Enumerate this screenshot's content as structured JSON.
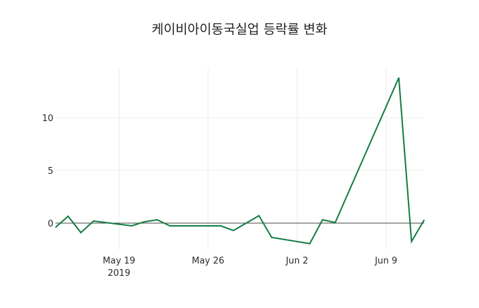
{
  "chart_data": {
    "type": "line",
    "title": "케이비아이동국실업 등락률 변화",
    "xlabel": "",
    "ylabel": "",
    "x": [
      "2019-05-14",
      "2019-05-15",
      "2019-05-16",
      "2019-05-17",
      "2019-05-20",
      "2019-05-21",
      "2019-05-22",
      "2019-05-23",
      "2019-05-24",
      "2019-05-27",
      "2019-05-28",
      "2019-05-29",
      "2019-05-30",
      "2019-05-31",
      "2019-06-03",
      "2019-06-04",
      "2019-06-05",
      "2019-06-10",
      "2019-06-11",
      "2019-06-12"
    ],
    "series": [
      {
        "name": "등락률",
        "color": "#0f7b3f",
        "values": [
          -0.4,
          0.65,
          -0.9,
          0.2,
          -0.26,
          0.13,
          0.32,
          -0.26,
          -0.26,
          -0.26,
          -0.7,
          0.0,
          0.71,
          -1.36,
          -1.95,
          0.32,
          0.06,
          13.8,
          -1.75,
          0.32
        ]
      }
    ],
    "x_ticks": [
      {
        "date": "2019-05-19",
        "label": "May 19",
        "sublabel": "2019"
      },
      {
        "date": "2019-05-26",
        "label": "May 26",
        "sublabel": ""
      },
      {
        "date": "2019-06-02",
        "label": "Jun 2",
        "sublabel": ""
      },
      {
        "date": "2019-06-09",
        "label": "Jun 9",
        "sublabel": ""
      }
    ],
    "y_ticks": [
      0,
      5,
      10
    ],
    "ylim": [
      -2.5,
      14.5
    ],
    "xlim": [
      "2019-05-14",
      "2019-06-12"
    ],
    "grid": true,
    "zero_line": true,
    "legend": "none"
  }
}
